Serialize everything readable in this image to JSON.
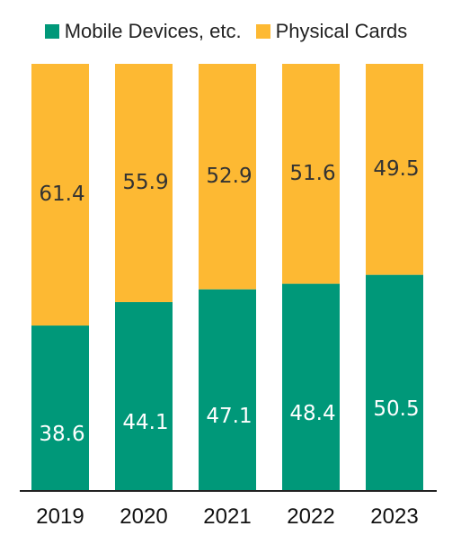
{
  "chart_data": {
    "type": "bar",
    "stacked": true,
    "categories": [
      "2019",
      "2020",
      "2021",
      "2022",
      "2023"
    ],
    "series": [
      {
        "name": "Mobile Devices, etc.",
        "values": [
          38.6,
          44.1,
          47.1,
          48.4,
          50.5
        ],
        "color": "#009879",
        "label_color": "#ffffff"
      },
      {
        "name": "Physical Cards",
        "values": [
          61.4,
          55.9,
          52.9,
          51.6,
          49.5
        ],
        "color": "#FDB933",
        "label_color": "#333333"
      }
    ],
    "ylim": [
      0,
      100
    ],
    "grid": false,
    "legend_position": "top"
  }
}
